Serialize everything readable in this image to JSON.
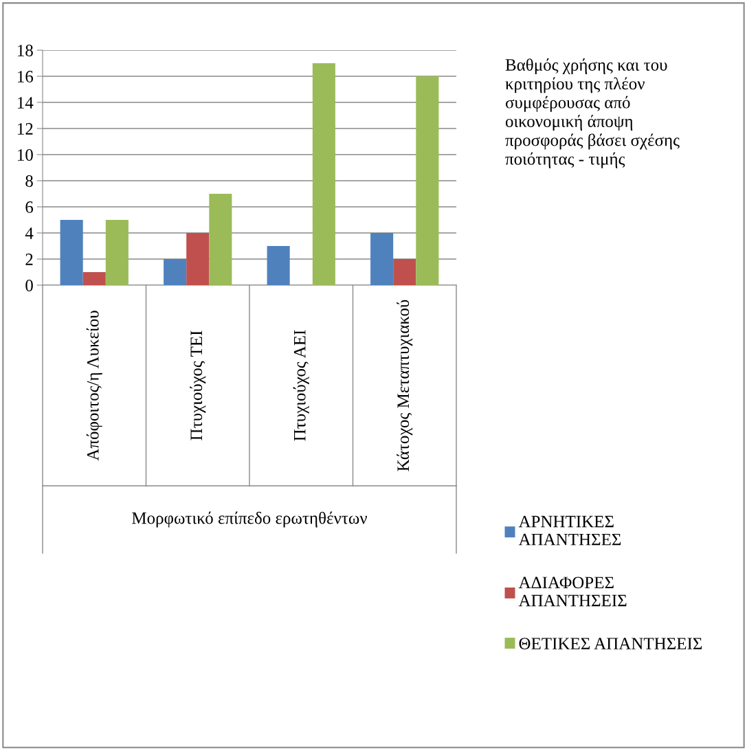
{
  "chart_data": {
    "type": "bar",
    "title": "Βαθμός χρήσης και του\nκριτηρίου της πλέον\nσυμφέρουσας από\nοικονομική άποψη\nπροσφοράς βάσει σχέσης\nποιότητας - τιμής",
    "xlabel": "Μορφωτικό επίπεδο ερωτηθέντων",
    "categories": [
      "Απόφοιτος/η Λυκείου",
      "Πτυχιούχος ΤΕΙ",
      "Πτυχιούχος ΑΕΙ",
      "Κάτοχος Μεταπτυχιακού"
    ],
    "series": [
      {
        "name": "ΑΡΝΗΤΙΚΕΣ\nΑΠΑΝΤΗΣΕΣ",
        "color": "#4f81bd",
        "values": [
          5,
          2,
          3,
          4
        ]
      },
      {
        "name": "ΑΔΙΑΦΟΡΕΣ\nΑΠΑΝΤΗΣΕΙΣ",
        "color": "#c0504d",
        "values": [
          1,
          4,
          0,
          2
        ]
      },
      {
        "name": "ΘΕΤΙΚΕΣ ΑΠΑΝΤΗΣΕΙΣ",
        "color": "#9bbb59",
        "values": [
          5,
          7,
          17,
          16
        ]
      }
    ],
    "ylim": [
      0,
      18
    ],
    "yticks": [
      0,
      2,
      4,
      6,
      8,
      10,
      12,
      14,
      16,
      18
    ],
    "grid": "y",
    "legend": "right"
  }
}
